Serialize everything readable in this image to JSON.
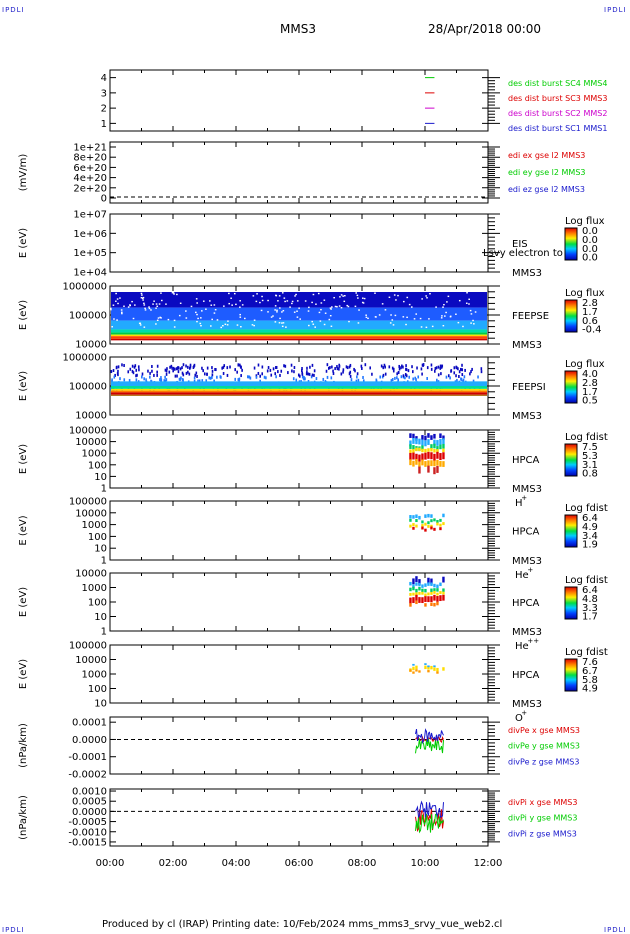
{
  "corner_label": "IPDLI",
  "header": {
    "spacecraft": "MMS3",
    "datetime": "28/Apr/2018 00:00"
  },
  "footer": "Produced by cl (IRAP)   Printing date: 10/Feb/2024   mms_mms3_srvy_vue_web2.cl",
  "colors": {
    "blue": "#1a1acc",
    "magenta": "#cc00cc",
    "red": "#dd0000",
    "green": "#00cc00"
  },
  "chart_data": [
    {
      "type": "line",
      "panel": "des-dist-burst",
      "yticks": [
        "4",
        "3",
        "2",
        "1"
      ],
      "ylim": [
        0.5,
        4.5
      ],
      "series": [
        {
          "name": "des dist burst SC1 MMS1",
          "color": "#1a1acc",
          "y": 1,
          "x_hours": [
            10.0,
            10.3
          ]
        },
        {
          "name": "des dist burst SC2 MMS2",
          "color": "#cc00cc",
          "y": 2,
          "x_hours": [
            10.0,
            10.3
          ]
        },
        {
          "name": "des dist burst SC3 MMS3",
          "color": "#dd0000",
          "y": 3,
          "x_hours": [
            10.0,
            10.3
          ]
        },
        {
          "name": "des dist burst SC4 MMS4",
          "color": "#00cc00",
          "y": 4,
          "x_hours": [
            10.0,
            10.3
          ]
        }
      ]
    },
    {
      "type": "line",
      "panel": "edi-e-field",
      "ylabel": "(mV/m)",
      "yticks": [
        "1e+21",
        "8e+20",
        "6e+20",
        "4e+20",
        "2e+20",
        "0"
      ],
      "series": [
        {
          "name": "edi ex gse l2 MMS3",
          "color": "#dd0000"
        },
        {
          "name": "edi ey gse l2 MMS3",
          "color": "#00cc00"
        },
        {
          "name": "edi ez gse l2 MMS3",
          "color": "#1a1acc"
        }
      ]
    },
    {
      "type": "heatmap",
      "panel": "eis",
      "ylabel": "E (eV)",
      "yticks": [
        "1e+07",
        "1e+06",
        "1e+05",
        "1e+04"
      ],
      "instrument": "EIS",
      "spacecraft": "MMS3",
      "overlay": "Lsvy electron to",
      "colorbar_title": "Log flux",
      "colorbar_ticks": [
        "0.0",
        "0.0",
        "0.0",
        "0.0"
      ]
    },
    {
      "type": "heatmap",
      "panel": "feeps-e",
      "ylabel": "E (eV)",
      "yticks": [
        "1000000",
        "100000",
        "10000"
      ],
      "instrument": "FEEPSE",
      "spacecraft": "MMS3",
      "colorbar_title": "Log flux",
      "colorbar_ticks": [
        "2.8",
        "1.7",
        "0.6",
        "-0.4"
      ],
      "x_range_hours": [
        0,
        12
      ]
    },
    {
      "type": "heatmap",
      "panel": "feeps-i",
      "ylabel": "E (eV)",
      "yticks": [
        "1000000",
        "100000",
        "10000"
      ],
      "instrument": "FEEPSI",
      "spacecraft": "MMS3",
      "colorbar_title": "Log flux",
      "colorbar_ticks": [
        "4.0",
        "2.8",
        "1.7",
        "0.5"
      ],
      "x_range_hours": [
        0,
        12
      ]
    },
    {
      "type": "heatmap",
      "panel": "hpca-h",
      "ylabel": "E (eV)",
      "yticks": [
        "100000",
        "10000",
        "1000",
        "100",
        "10",
        "1"
      ],
      "instrument": "HPCA",
      "spacecraft": "MMS3",
      "species": "H",
      "charge": "+",
      "colorbar_title": "Log fdist",
      "colorbar_ticks": [
        "7.5",
        "5.3",
        "3.1",
        "0.8"
      ],
      "x_range_hours": [
        9.5,
        10.6
      ]
    },
    {
      "type": "heatmap",
      "panel": "hpca-he",
      "ylabel": "E (eV)",
      "yticks": [
        "100000",
        "10000",
        "1000",
        "100",
        "10",
        "1"
      ],
      "instrument": "HPCA",
      "spacecraft": "MMS3",
      "species": "He",
      "charge": "+",
      "colorbar_title": "Log fdist",
      "colorbar_ticks": [
        "6.4",
        "4.9",
        "3.4",
        "1.9"
      ],
      "x_range_hours": [
        9.5,
        10.6
      ]
    },
    {
      "type": "heatmap",
      "panel": "hpca-he2",
      "ylabel": "E (eV)",
      "yticks": [
        "10000",
        "1000",
        "100",
        "10",
        "1"
      ],
      "instrument": "HPCA",
      "spacecraft": "MMS3",
      "species": "He",
      "charge": "++",
      "colorbar_title": "Log fdist",
      "colorbar_ticks": [
        "6.4",
        "4.8",
        "3.3",
        "1.7"
      ],
      "x_range_hours": [
        9.5,
        10.6
      ]
    },
    {
      "type": "heatmap",
      "panel": "hpca-o",
      "ylabel": "E (eV)",
      "yticks": [
        "100000",
        "10000",
        "1000",
        "100",
        "10"
      ],
      "instrument": "HPCA",
      "spacecraft": "MMS3",
      "species": "O",
      "charge": "+",
      "colorbar_title": "Log fdist",
      "colorbar_ticks": [
        "7.6",
        "6.7",
        "5.8",
        "4.9"
      ],
      "x_range_hours": [
        9.5,
        10.6
      ]
    },
    {
      "type": "line",
      "panel": "divpe",
      "ylabel": "(nPa/km)",
      "yticks": [
        "0.0001",
        "0.0000",
        "-0.0001",
        "-0.0002"
      ],
      "ylim": [
        -0.0002,
        0.00013
      ],
      "series": [
        {
          "name": "divPe x gse MMS3",
          "color": "#dd0000"
        },
        {
          "name": "divPe y gse MMS3",
          "color": "#00cc00"
        },
        {
          "name": "divPe z gse MMS3",
          "color": "#1a1acc"
        }
      ],
      "x_range_hours": [
        9.7,
        10.6
      ]
    },
    {
      "type": "line",
      "panel": "divpi",
      "ylabel": "(nPa/km)",
      "yticks": [
        "0.0010",
        "0.0005",
        "0.0000",
        "-0.0005",
        "-0.0010",
        "-0.0015"
      ],
      "ylim": [
        -0.0017,
        0.0011
      ],
      "series": [
        {
          "name": "divPi x gse MMS3",
          "color": "#dd0000"
        },
        {
          "name": "divPi y gse MMS3",
          "color": "#00cc00"
        },
        {
          "name": "divPi z gse MMS3",
          "color": "#1a1acc"
        }
      ],
      "x_range_hours": [
        9.7,
        10.6
      ]
    }
  ],
  "xaxis": {
    "ticks": [
      "00:00",
      "02:00",
      "04:00",
      "06:00",
      "08:00",
      "10:00",
      "12:00"
    ],
    "xlim_hours": [
      0,
      12
    ]
  }
}
